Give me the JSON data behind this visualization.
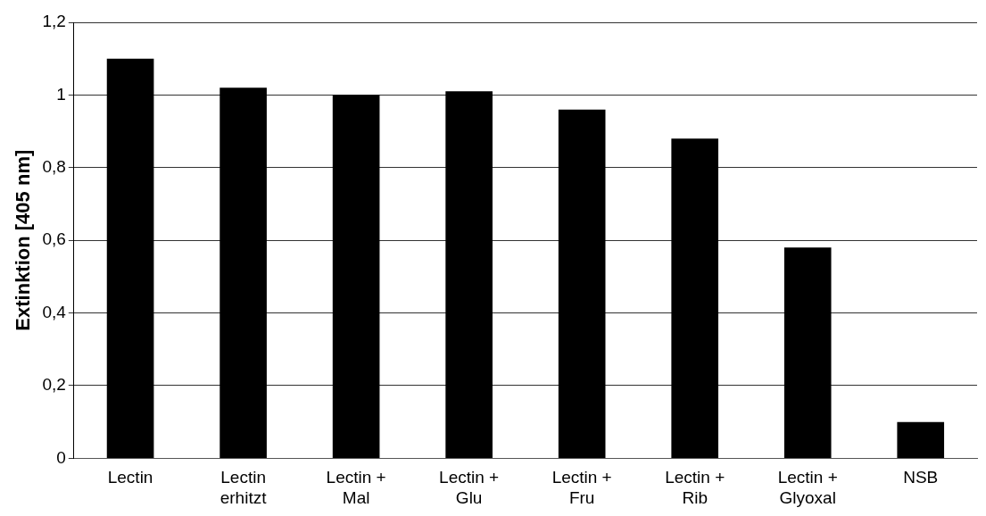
{
  "chart_data": {
    "type": "bar",
    "ylabel": "Extinktion [405 nm]",
    "categories": [
      "Lectin",
      "Lectin\nerhitzt",
      "Lectin +\nMal",
      "Lectin +\nGlu",
      "Lectin +\nFru",
      "Lectin +\nRib",
      "Lectin +\nGlyoxal",
      "NSB"
    ],
    "values": [
      1.1,
      1.02,
      1.0,
      1.01,
      0.96,
      0.88,
      0.58,
      0.1
    ],
    "color": "#000000",
    "ylim": [
      0,
      1.2
    ],
    "yticks": [
      0,
      {
        "value": 0.2,
        "label": "0,2"
      },
      {
        "value": 0.4,
        "label": "0,4"
      },
      {
        "value": 0.6,
        "label": "0,6"
      },
      {
        "value": 0.8,
        "label": "0,8"
      },
      1,
      {
        "value": 1.2,
        "label": "1,2"
      }
    ],
    "grid": "y",
    "legend": false
  }
}
